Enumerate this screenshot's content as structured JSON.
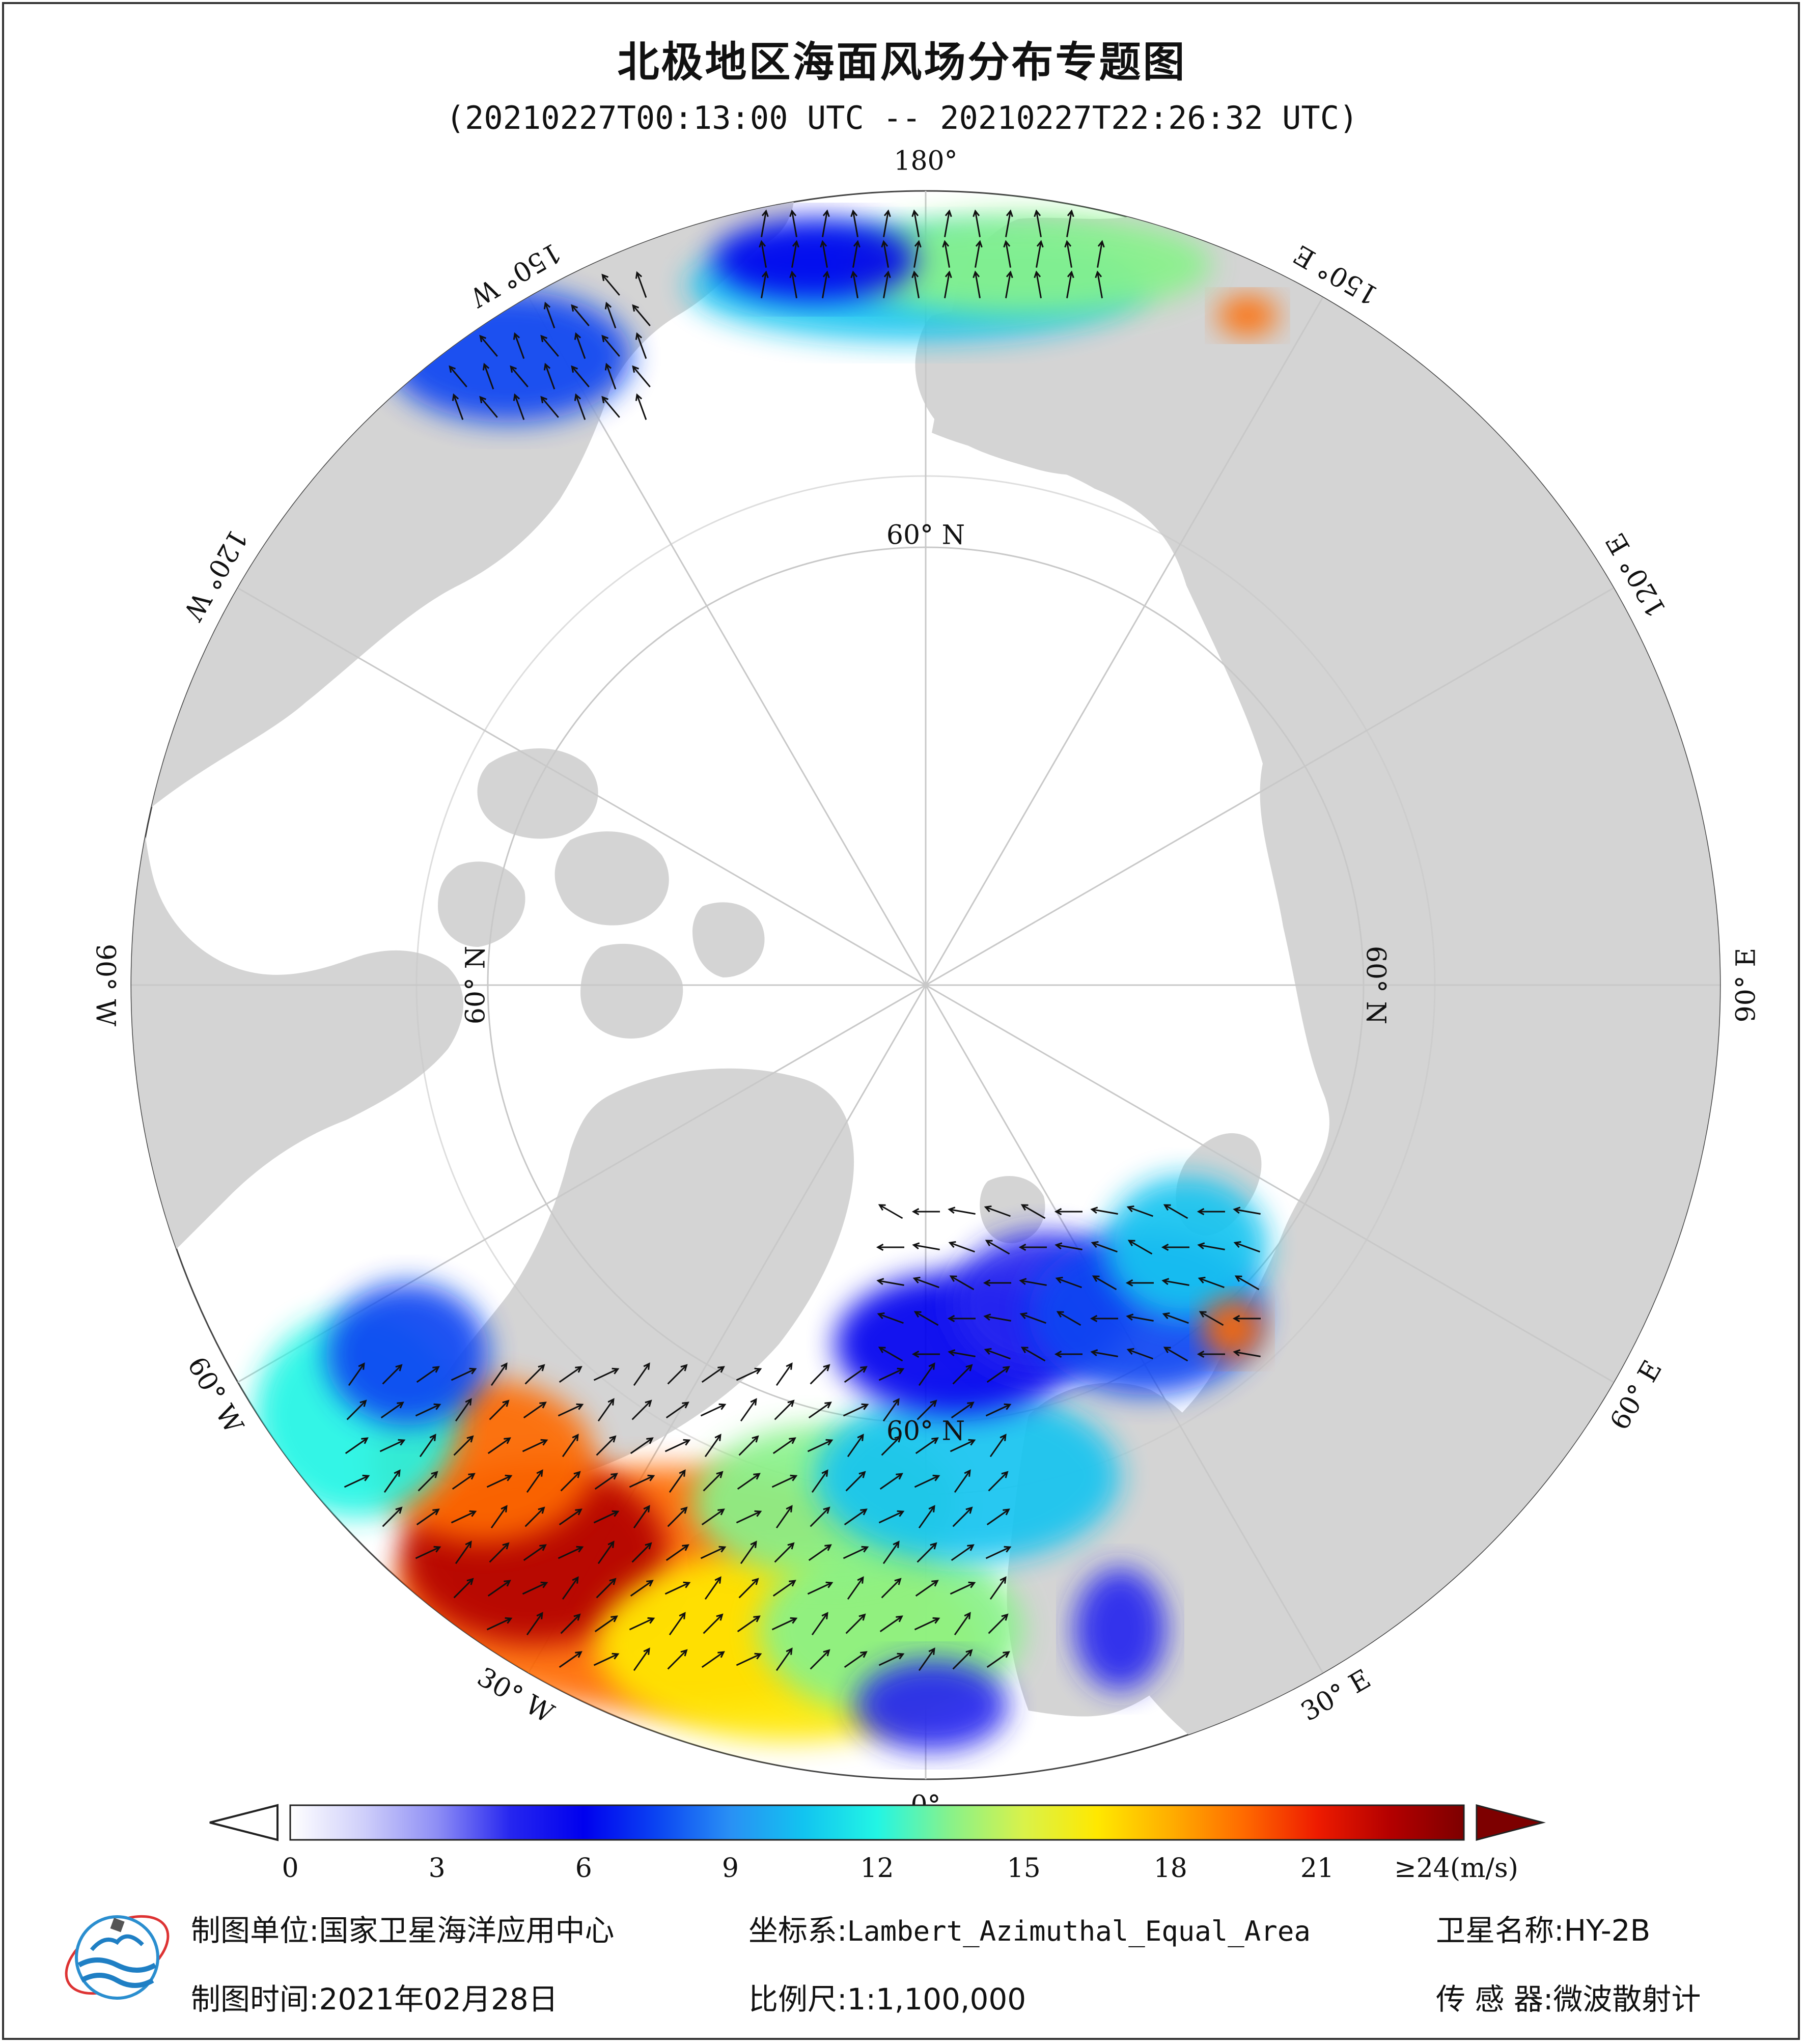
{
  "title": "北极地区海面风场分布专题图",
  "subtitle": "(20210227T00:13:00 UTC -- 20210227T22:26:32 UTC)",
  "map": {
    "projection_center": "North Pole",
    "lon_labels": [
      {
        "text": "180°",
        "lon": 180
      },
      {
        "text": "150° E",
        "lon": 150
      },
      {
        "text": "120° E",
        "lon": 120
      },
      {
        "text": "90° E",
        "lon": 90
      },
      {
        "text": "60° E",
        "lon": 60
      },
      {
        "text": "30° E",
        "lon": 30
      },
      {
        "text": "0°",
        "lon": 0
      },
      {
        "text": "30° W",
        "lon": -30
      },
      {
        "text": "60° W",
        "lon": -60
      },
      {
        "text": "90° W",
        "lon": -90
      },
      {
        "text": "120° W",
        "lon": -120
      },
      {
        "text": "150° W",
        "lon": -150
      }
    ],
    "lat_labels": [
      {
        "text": "60° N",
        "lon": 180
      },
      {
        "text": "60° N",
        "lon": 90
      },
      {
        "text": "60° N",
        "lon": 0
      },
      {
        "text": "60° N",
        "lon": -90
      }
    ],
    "colors": {
      "land": "#d4d4d4",
      "ocean": "#ffffff",
      "coast": "#222222",
      "grid": "#c8c8c8"
    }
  },
  "colorbar": {
    "unit_label": "≥24(m/s)",
    "min": 0,
    "max": 24,
    "ticks": [
      "0",
      "3",
      "6",
      "9",
      "12",
      "15",
      "18",
      "21"
    ],
    "tick_values": [
      0,
      3,
      6,
      9,
      12,
      15,
      18,
      21
    ],
    "stops": [
      "#ffffff",
      "#cfcffa",
      "#8e8ef5",
      "#2626ef",
      "#0000ee",
      "#0b44f2",
      "#2990f4",
      "#12c4f0",
      "#22f5e4",
      "#88f28a",
      "#d9f24a",
      "#ffe800",
      "#ffae00",
      "#ff6a00",
      "#ee1b00",
      "#b30000",
      "#7d0000"
    ]
  },
  "footer": {
    "unit_label": "制图单位:",
    "unit_value": "国家卫星海洋应用中心",
    "crs_label": "坐标系:",
    "crs_value": "Lambert_Azimuthal_Equal_Area",
    "sat_label": "卫星名称:",
    "sat_value": "HY-2B",
    "date_label": "制图时间:",
    "date_value": "2021年02月28日",
    "scale_label": "比例尺:",
    "scale_value": "1:1,100,000",
    "sensor_label": "传 感 器:",
    "sensor_value": "微波散射计"
  }
}
